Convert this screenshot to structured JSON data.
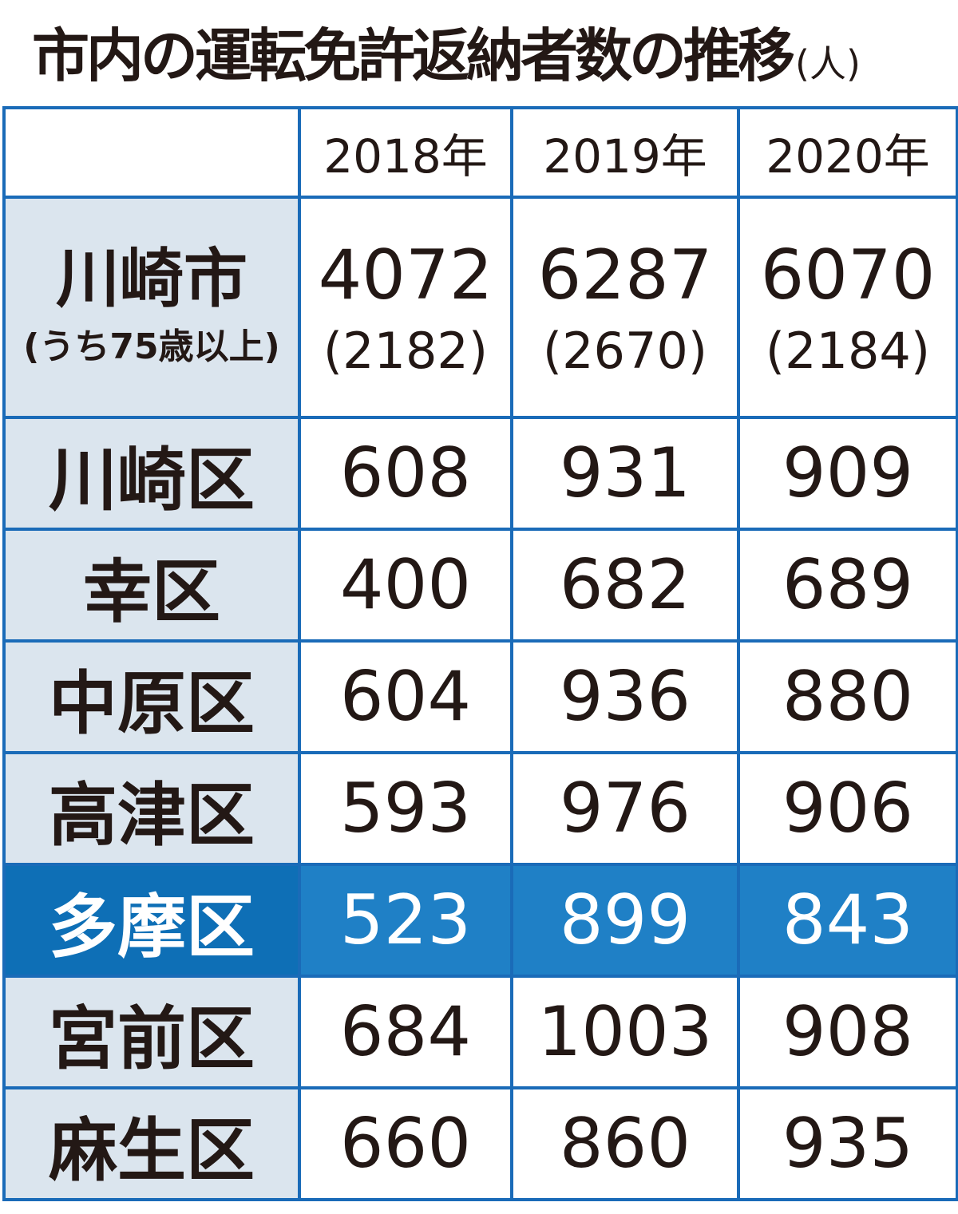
{
  "title": "市内の運転免許返納者数の推移",
  "unit": "(人)",
  "colors": {
    "border": "#1a6bb8",
    "label_bg": "#dbe5ee",
    "highlight_label": "#0e6fb6",
    "highlight_cells": "#1f80c6"
  },
  "chart_data": {
    "type": "table",
    "title": "市内の運転免許返納者数の推移",
    "unit": "(人)",
    "columns": [
      "2018年",
      "2019年",
      "2020年"
    ],
    "city": {
      "name": "川崎市",
      "sub": "(うち75歳以上)",
      "totals": [
        "4072",
        "6287",
        "6070"
      ],
      "aged75": [
        "(2182)",
        "(2670)",
        "(2184)"
      ]
    },
    "rows": [
      {
        "name": "川崎区",
        "values": [
          "608",
          "931",
          "909"
        ]
      },
      {
        "name": "幸区",
        "values": [
          "400",
          "682",
          "689"
        ]
      },
      {
        "name": "中原区",
        "values": [
          "604",
          "936",
          "880"
        ]
      },
      {
        "name": "高津区",
        "values": [
          "593",
          "976",
          "906"
        ]
      },
      {
        "name": "多摩区",
        "values": [
          "523",
          "899",
          "843"
        ],
        "highlighted": true
      },
      {
        "name": "宮前区",
        "values": [
          "684",
          "1003",
          "908"
        ]
      },
      {
        "name": "麻生区",
        "values": [
          "660",
          "860",
          "935"
        ]
      }
    ]
  }
}
